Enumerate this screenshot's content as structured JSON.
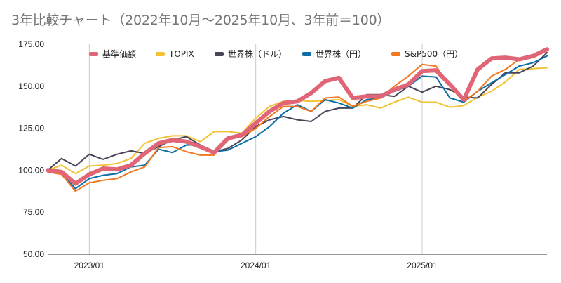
{
  "chart_data": {
    "type": "line",
    "title": "3年比較チャート（2022年10月～2025年10月、3年前＝100）",
    "xlabel": "",
    "ylabel": "",
    "ylim": [
      50,
      175
    ],
    "yticks": [
      "50.00",
      "75.00",
      "100.00",
      "125.00",
      "150.00",
      "175.00"
    ],
    "xticks": [
      {
        "index": 3,
        "label": "2023/01"
      },
      {
        "index": 15,
        "label": "2024/01"
      },
      {
        "index": 27,
        "label": "2025/01"
      }
    ],
    "x": [
      "2022/10",
      "2022/11",
      "2022/12",
      "2023/01",
      "2023/02",
      "2023/03",
      "2023/04",
      "2023/05",
      "2023/06",
      "2023/07",
      "2023/08",
      "2023/09",
      "2023/10",
      "2023/11",
      "2023/12",
      "2024/01",
      "2024/02",
      "2024/03",
      "2024/04",
      "2024/05",
      "2024/06",
      "2024/07",
      "2024/08",
      "2024/09",
      "2024/10",
      "2024/11",
      "2024/12",
      "2025/01",
      "2025/02",
      "2025/03",
      "2025/04",
      "2025/05",
      "2025/06",
      "2025/07",
      "2025/08",
      "2025/09",
      "2025/10"
    ],
    "grid": "vertical-at-xticks",
    "legend_position": "top",
    "series": [
      {
        "name": "TOPIX",
        "color": "#f1c232",
        "width": 2,
        "values": [
          100,
          103,
          98,
          102.5,
          103,
          104,
          107,
          116,
          119,
          120.5,
          120.5,
          117,
          123,
          123,
          122,
          131,
          138,
          141,
          141.5,
          141,
          141.5,
          142,
          138,
          139,
          137,
          140.5,
          143.5,
          140.5,
          140.5,
          137.5,
          138.5,
          143.5,
          147,
          152.5,
          160,
          160.5,
          161
        ]
      },
      {
        "name": "世界株（ドル）",
        "color": "#4a4459",
        "width": 2,
        "values": [
          100,
          107,
          102.5,
          109.5,
          106.5,
          109.5,
          111.5,
          110,
          114,
          118,
          120,
          115,
          111,
          113,
          118,
          126,
          130,
          132,
          130,
          129,
          135,
          137,
          137,
          145,
          145,
          144,
          150,
          146.5,
          150,
          148,
          143.5,
          143,
          151,
          158,
          158,
          162,
          170
        ]
      },
      {
        "name": "世界株（円）",
        "color": "#0b6ea8",
        "width": 2,
        "values": [
          100,
          98.5,
          89,
          95,
          97,
          98,
          102,
          103,
          112.5,
          110.5,
          115,
          115,
          111,
          112,
          116,
          120,
          126,
          134,
          139,
          135,
          142,
          140,
          137,
          142,
          143,
          147,
          150,
          156,
          155.5,
          143,
          140.5,
          147,
          152,
          157,
          162,
          164,
          168
        ]
      },
      {
        "name": "S&P500（円）",
        "color": "#f4761f",
        "width": 2,
        "values": [
          99,
          97.5,
          87.5,
          92.5,
          94,
          95,
          99,
          102,
          113.5,
          114,
          111,
          109,
          109,
          120,
          120,
          125,
          132,
          138,
          138,
          135,
          143,
          143.5,
          138,
          141,
          143,
          150,
          156,
          163,
          162,
          150,
          141,
          147,
          156,
          160,
          166,
          167,
          171
        ]
      },
      {
        "name": "基準価額",
        "color": "#e06677",
        "width": 6,
        "values": [
          100,
          99,
          92,
          97.5,
          101,
          100.5,
          103,
          110,
          116,
          118,
          117,
          114,
          110.5,
          119,
          121,
          128,
          135,
          140,
          141,
          146,
          153,
          155,
          143,
          144,
          144,
          148,
          151,
          159,
          159.5,
          151,
          142,
          160,
          166.5,
          167,
          166,
          168,
          172
        ]
      }
    ]
  }
}
